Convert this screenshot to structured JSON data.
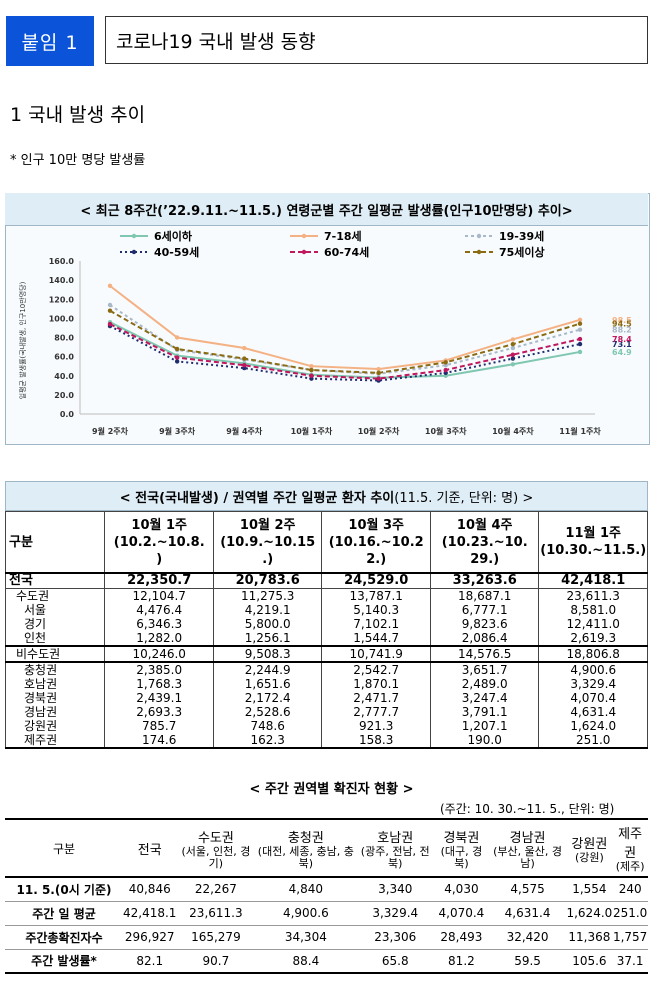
{
  "badge": "붙임 1",
  "title": "코로나19 국내 발생 동향",
  "section": "1  국내 발생 추이",
  "note": "* 인구 10만 명당 발생률",
  "chart_data": {
    "type": "line",
    "title": "< 최근 8주간(’22.9.11.~11.5.) 연령군별 주간 일평균 발생률(인구10만명당) 추이>",
    "ylabel": "일평균 발생률(국내발생, 인구10만명당)",
    "ylim": [
      0,
      160
    ],
    "yticks": [
      "0.0",
      "20.0",
      "40.0",
      "60.0",
      "80.0",
      "100.0",
      "120.0",
      "140.0",
      "160.0"
    ],
    "categories": [
      "9월 2주차",
      "9월 3주차",
      "9월 4주차",
      "10월 1주차",
      "10월 2주차",
      "10월 3주차",
      "10월 4주차",
      "11월 1주차"
    ],
    "series": [
      {
        "name": "6세이하",
        "color": "#7fc7b0",
        "dash": "",
        "values": [
          96,
          61,
          53,
          41,
          38,
          40,
          52,
          64.9
        ],
        "end_label": "64.9"
      },
      {
        "name": "7-18세",
        "color": "#f4b183",
        "dash": "",
        "values": [
          134,
          80,
          69,
          50,
          47,
          56,
          78,
          98.5
        ],
        "end_label": "98.5"
      },
      {
        "name": "19-39세",
        "color": "#a9b8c8",
        "dash": "3,3",
        "values": [
          114,
          67,
          57,
          46,
          42,
          51,
          69,
          88.2
        ],
        "end_label": "88.2"
      },
      {
        "name": "40-59세",
        "color": "#1f2c6e",
        "dash": "2,3",
        "values": [
          92,
          55,
          48,
          37,
          35,
          43,
          58,
          73.1
        ],
        "end_label": "73.1"
      },
      {
        "name": "60-74세",
        "color": "#c0185e",
        "dash": "5,3",
        "values": [
          94,
          59,
          51,
          40,
          37,
          46,
          62,
          78.4
        ],
        "end_label": "78.4"
      },
      {
        "name": "75세이상",
        "color": "#8b6b12",
        "dash": "5,3",
        "values": [
          108,
          68,
          58,
          46,
          43,
          54,
          73,
          94.5
        ],
        "end_label": "94.5"
      }
    ]
  },
  "table1": {
    "title": "< 전국(국내발생) / 권역별 주간 일평균 환자 추이",
    "title_suffix": " (11.5. 기준, 단위: 명) >",
    "corner": "구분",
    "headers": [
      {
        "l1": "10월 1주",
        "l2": "(10.2.~10.8.",
        "l3": ")"
      },
      {
        "l1": "10월 2주",
        "l2": "(10.9.~10.15",
        "l3": ".)"
      },
      {
        "l1": "10월 3주",
        "l2": "(10.16.~10.2",
        "l3": "2.)"
      },
      {
        "l1": "10월 4주",
        "l2": "(10.23.~10.",
        "l3": "29.)"
      },
      {
        "l1": "11월 1주",
        "l2": "(10.30.~11.5.)",
        "l3": ""
      }
    ],
    "rows": [
      {
        "label": "전국",
        "vals": [
          "22,350.7",
          "20,783.6",
          "24,529.0",
          "33,263.6",
          "42,418.1"
        ]
      },
      {
        "label": "수도권",
        "vals": [
          "12,104.7",
          "11,275.3",
          "13,787.1",
          "18,687.1",
          "23,611.3"
        ]
      },
      {
        "label": "서울",
        "vals": [
          "4,476.4",
          "4,219.1",
          "5,140.3",
          "6,777.1",
          "8,581.0"
        ]
      },
      {
        "label": "경기",
        "vals": [
          "6,346.3",
          "5,800.0",
          "7,102.1",
          "9,823.6",
          "12,411.0"
        ]
      },
      {
        "label": "인천",
        "vals": [
          "1,282.0",
          "1,256.1",
          "1,544.7",
          "2,086.4",
          "2,619.3"
        ]
      },
      {
        "label": "비수도권",
        "vals": [
          "10,246.0",
          "9,508.3",
          "10,741.9",
          "14,576.5",
          "18,806.8"
        ]
      },
      {
        "label": "충청권",
        "vals": [
          "2,385.0",
          "2,244.9",
          "2,542.7",
          "3,651.7",
          "4,900.6"
        ]
      },
      {
        "label": "호남권",
        "vals": [
          "1,768.3",
          "1,651.6",
          "1,870.1",
          "2,489.0",
          "3,329.4"
        ]
      },
      {
        "label": "경북권",
        "vals": [
          "2,439.1",
          "2,172.4",
          "2,471.7",
          "3,247.4",
          "4,070.4"
        ]
      },
      {
        "label": "경남권",
        "vals": [
          "2,693.3",
          "2,528.6",
          "2,777.7",
          "3,791.1",
          "4,631.4"
        ]
      },
      {
        "label": "강원권",
        "vals": [
          "785.7",
          "748.6",
          "921.3",
          "1,207.1",
          "1,624.0"
        ]
      },
      {
        "label": "제주권",
        "vals": [
          "174.6",
          "162.3",
          "158.3",
          "190.0",
          "251.0"
        ]
      }
    ]
  },
  "table2": {
    "title": "< 주간 권역별 확진자 현황 >",
    "unit": "(주간: 10. 30.~11. 5., 단위: 명)",
    "corner": "구분",
    "cols": [
      {
        "name": "전국",
        "sub": ""
      },
      {
        "name": "수도권",
        "sub": "(서울, 인천, 경기)"
      },
      {
        "name": "충청권",
        "sub": "(대전, 세종, 충남, 충북)"
      },
      {
        "name": "호남권",
        "sub": "(광주, 전남, 전북)"
      },
      {
        "name": "경북권",
        "sub": "(대구, 경북)"
      },
      {
        "name": "경남권",
        "sub": "(부산, 울산, 경남)"
      },
      {
        "name": "강원권",
        "sub": "(강원)"
      },
      {
        "name": "제주권",
        "sub": "(제주)"
      }
    ],
    "rows": [
      {
        "label": "11. 5.(0시 기준)",
        "vals": [
          "40,846",
          "22,267",
          "4,840",
          "3,340",
          "4,030",
          "4,575",
          "1,554",
          "240"
        ]
      },
      {
        "label": "주간 일 평균",
        "vals": [
          "42,418.1",
          "23,611.3",
          "4,900.6",
          "3,329.4",
          "4,070.4",
          "4,631.4",
          "1,624.0",
          "251.0"
        ]
      },
      {
        "label": "주간총확진자수",
        "vals": [
          "296,927",
          "165,279",
          "34,304",
          "23,306",
          "28,493",
          "32,420",
          "11,368",
          "1,757"
        ]
      },
      {
        "label": "주간 발생률*",
        "vals": [
          "82.1",
          "90.7",
          "88.4",
          "65.8",
          "81.2",
          "59.5",
          "105.6",
          "37.1"
        ]
      }
    ]
  }
}
